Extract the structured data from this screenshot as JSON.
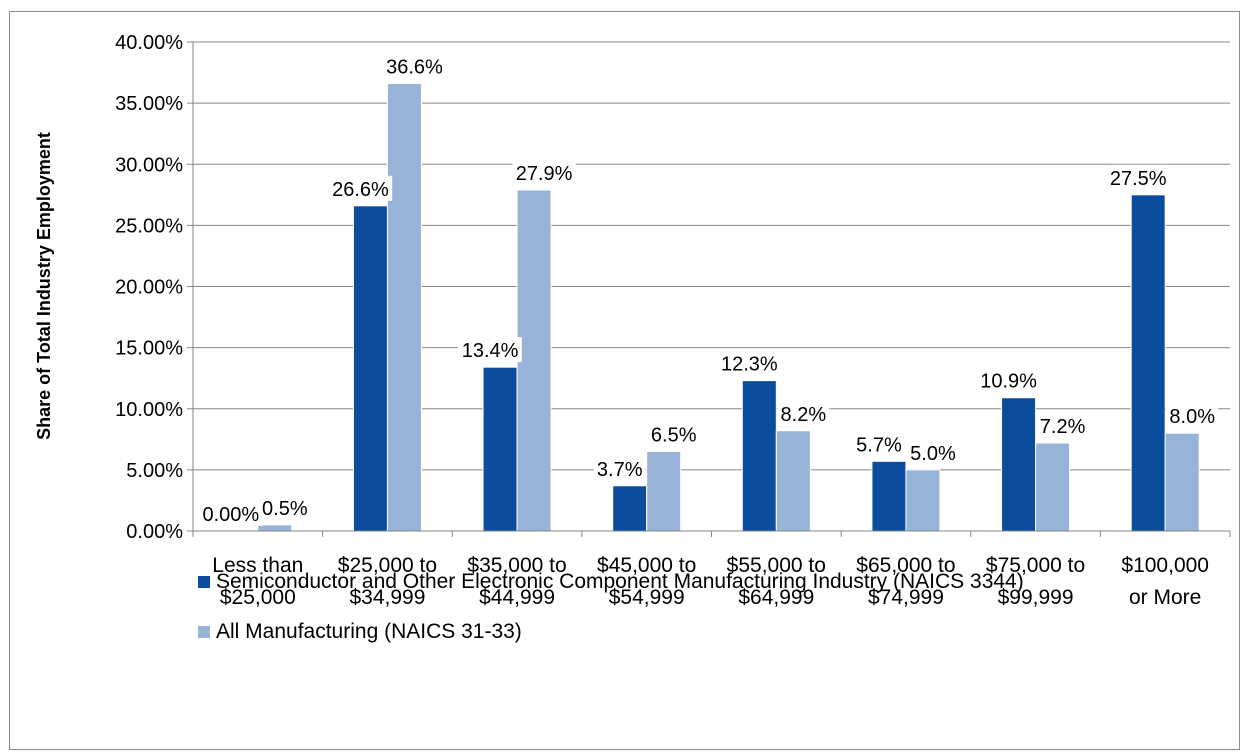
{
  "chart_data": {
    "type": "bar",
    "title": "",
    "xlabel": "",
    "ylabel": "Share of Total Industry Employment",
    "ylim": [
      0,
      40
    ],
    "ytick_values": [
      0,
      5,
      10,
      15,
      20,
      25,
      30,
      35,
      40
    ],
    "ytick_labels": [
      "0.00%",
      "5.00%",
      "10.00%",
      "15.00%",
      "20.00%",
      "25.00%",
      "30.00%",
      "35.00%",
      "40.00%"
    ],
    "grid": true,
    "legend_position": "bottom",
    "categories": [
      [
        "Less than",
        "$25,000"
      ],
      [
        "$25,000 to",
        "$34,999"
      ],
      [
        "$35,000 to",
        "$44,999"
      ],
      [
        "$45,000 to",
        "$54,999"
      ],
      [
        "$55,000 to",
        "$64,999"
      ],
      [
        "$65,000 to",
        "$74,999"
      ],
      [
        "$75,000 to",
        "$99,999"
      ],
      [
        "$100,000",
        "or More"
      ]
    ],
    "series": [
      {
        "name": "Semiconductor and Other Electronic Component Manufacturing Industry (NAICS 3344)",
        "color": "#0c4c9c",
        "values": [
          0.0,
          26.6,
          13.4,
          3.7,
          12.3,
          5.7,
          10.9,
          27.5
        ],
        "labels": [
          "0.00%",
          "26.6%",
          "13.4%",
          "3.7%",
          "12.3%",
          "5.7%",
          "10.9%",
          "27.5%"
        ]
      },
      {
        "name": "All Manufacturing (NAICS 31-33)",
        "color": "#97b3d8",
        "values": [
          0.5,
          36.6,
          27.9,
          6.5,
          8.2,
          5.0,
          7.2,
          8.0
        ],
        "labels": [
          "0.5%",
          "36.6%",
          "27.9%",
          "6.5%",
          "8.2%",
          "5.0%",
          "7.2%",
          "8.0%"
        ]
      }
    ]
  }
}
